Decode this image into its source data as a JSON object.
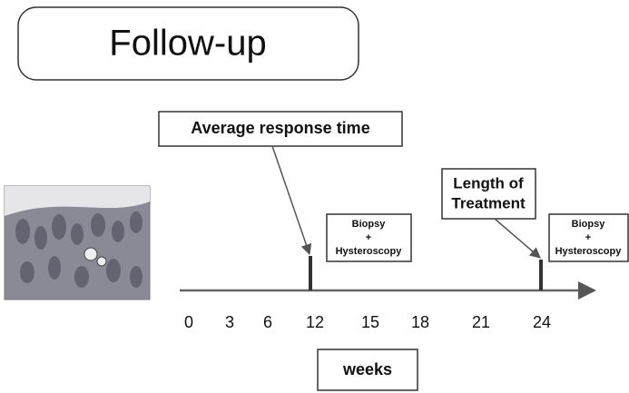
{
  "title": "Follow-up",
  "callouts": [
    {
      "lines": [
        "Average response time"
      ]
    },
    {
      "lines": [
        "Length of",
        "Treatment"
      ]
    }
  ],
  "procedures": [
    {
      "lines": [
        "Biopsy",
        "+",
        "Hysteroscopy"
      ]
    },
    {
      "lines": [
        "Biopsy",
        "+",
        "Hysteroscopy"
      ]
    }
  ],
  "timeline": {
    "ticks": [
      0,
      3,
      6,
      12,
      15,
      18,
      21,
      24
    ],
    "label": "weeks"
  }
}
